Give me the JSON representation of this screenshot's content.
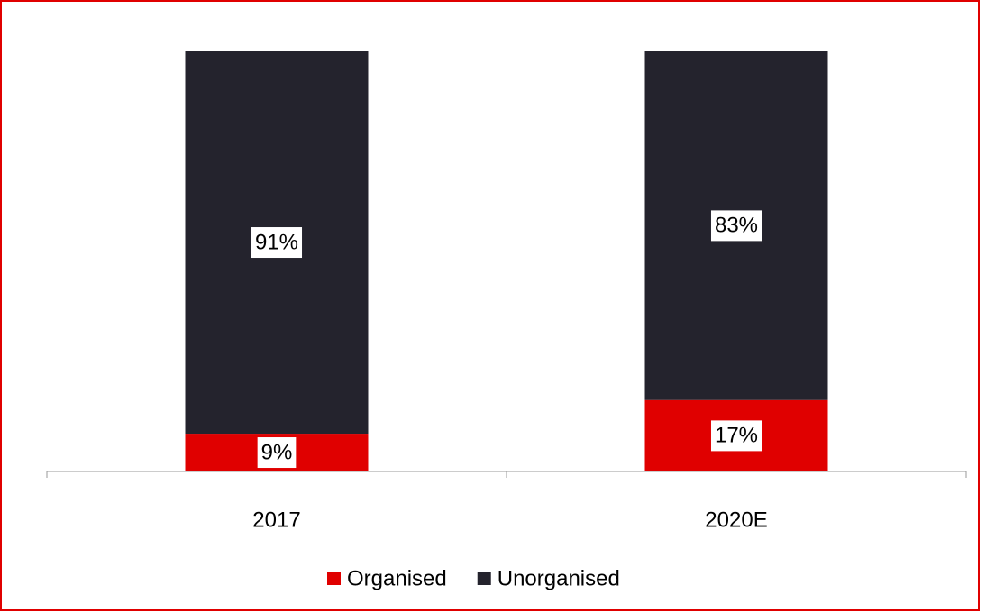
{
  "chart_data": {
    "type": "stacked_bar",
    "categories": [
      "2017",
      "2020E"
    ],
    "series": [
      {
        "name": "Organised",
        "color": "#e00000",
        "values": [
          9,
          17
        ],
        "value_labels": [
          "9%",
          "17%"
        ]
      },
      {
        "name": "Unorganised",
        "color": "#24232d",
        "values": [
          91,
          83
        ],
        "value_labels": [
          "91%",
          "83%"
        ]
      }
    ],
    "ylim": [
      0,
      100
    ],
    "legend": "bottom"
  }
}
